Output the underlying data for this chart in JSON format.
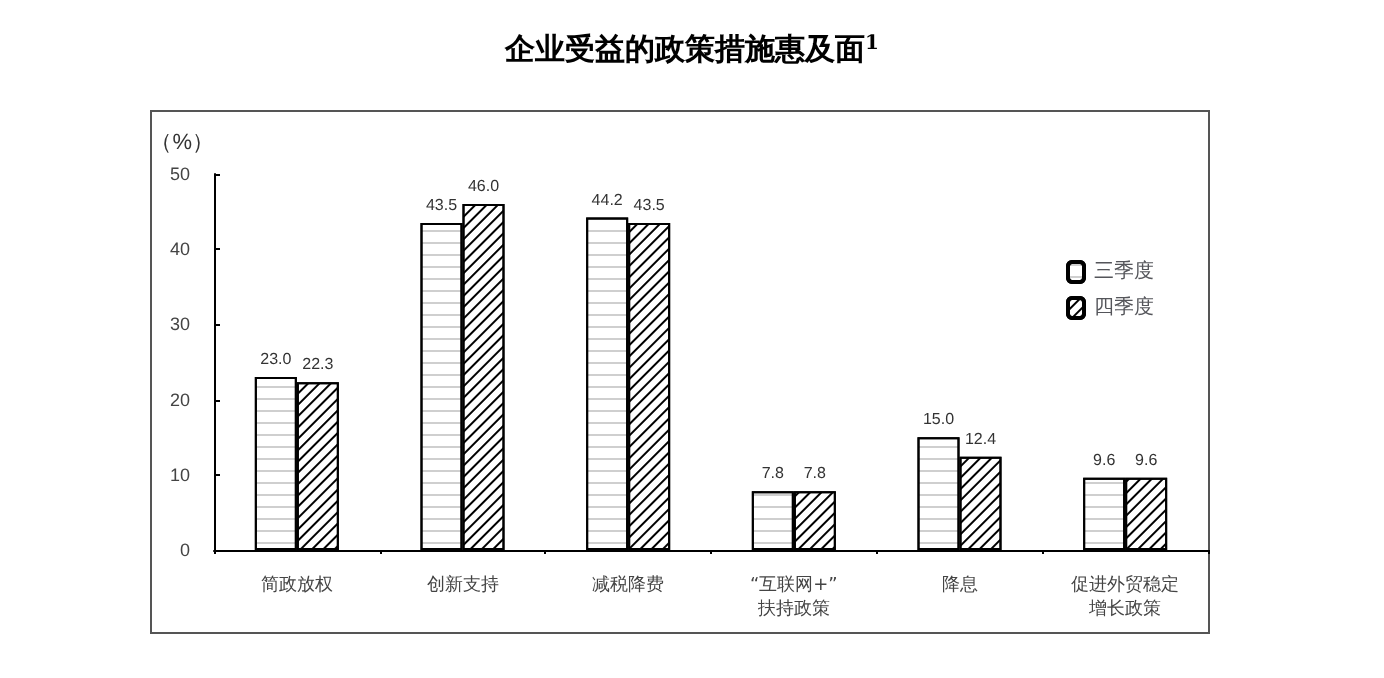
{
  "chart_data": {
    "type": "bar",
    "title": "企业受益的政策措施惠及面$^{1}$",
    "ylabel": "（%）",
    "categories": [
      "简政放权",
      "创新支持",
      "减税降费",
      "“互联网+”扶持政策",
      "降息",
      "促进外贸稳定增长政策"
    ],
    "series": [
      {
        "name": "三季度",
        "color": "#ffffff",
        "values": [
          23.0,
          43.5,
          44.2,
          7.8,
          15.0,
          9.6
        ],
        "value_labels": [
          "23.0",
          "43.5",
          "44.2",
          "7.8",
          "15.0",
          "9.6"
        ]
      },
      {
        "name": "四季度",
        "color": "#ffffff",
        "values": [
          22.3,
          46.0,
          43.5,
          7.8,
          12.4,
          9.6
        ],
        "value_labels": [
          "22.3",
          "46.0",
          "43.5",
          "7.8",
          "12.4",
          "9.6"
        ]
      }
    ],
    "ylim": [
      0,
      50
    ],
    "yticks": [
      0,
      10,
      20,
      30,
      40,
      50
    ],
    "grid": false,
    "legend": "top right"
  }
}
